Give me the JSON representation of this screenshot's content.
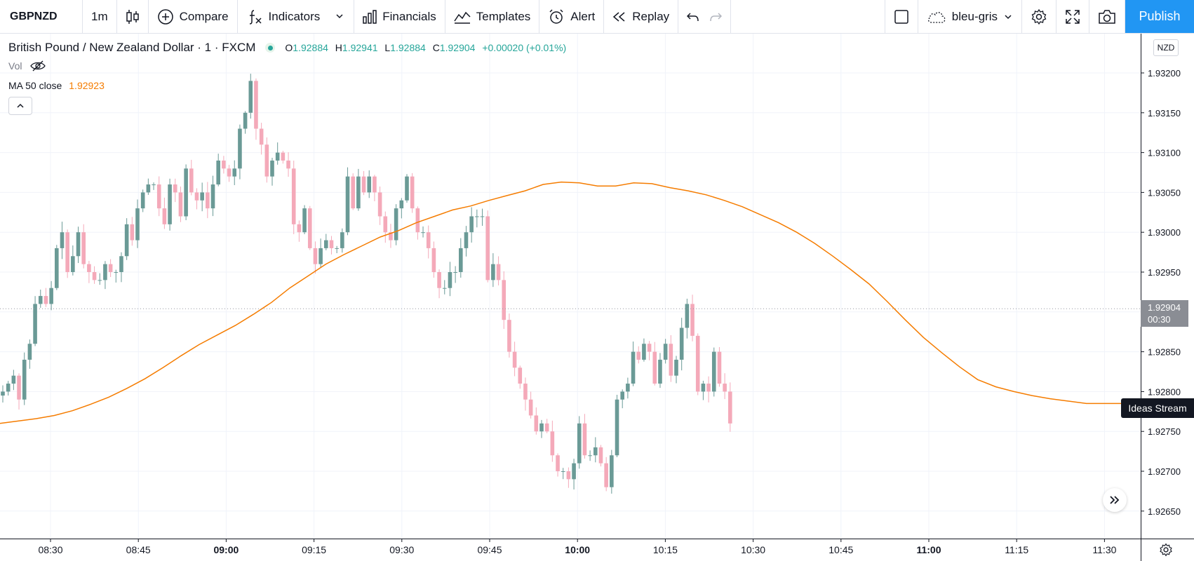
{
  "toolbar": {
    "symbol": "GBPNZD",
    "interval": "1m",
    "compare_label": "Compare",
    "indicators_label": "Indicators",
    "financials_label": "Financials",
    "templates_label": "Templates",
    "alert_label": "Alert",
    "replay_label": "Replay",
    "layout_name": "bleu-gris",
    "publish_label": "Publish"
  },
  "legend": {
    "title": "British Pound / New Zealand Dollar · 1 · FXCM",
    "o_label": "O",
    "o_value": "1.92884",
    "h_label": "H",
    "h_value": "1.92941",
    "l_label": "L",
    "l_value": "1.92884",
    "c_label": "C",
    "c_value": "1.92904",
    "change": "+0.00020 (+0.01%)",
    "vol_label": "Vol",
    "ma_label": "MA 50 close",
    "ma_value": "1.92923"
  },
  "price_axis": {
    "currency": "NZD",
    "last_price": "1.92904",
    "countdown": "00:30"
  },
  "ideas_label": "Ideas Stream",
  "colors": {
    "up": "#6a9a96",
    "down": "#f4a9b9",
    "ma": "#f57c00",
    "accent": "#2196f3"
  },
  "chart_data": {
    "type": "candlestick",
    "interval": "1m",
    "y_ticks": [
      1.932,
      1.9315,
      1.931,
      1.9305,
      1.93,
      1.9295,
      1.929,
      1.9285,
      1.928,
      1.9275,
      1.927,
      1.9265
    ],
    "y_tick_labels": [
      "1.93200",
      "1.93150",
      "1.93100",
      "1.93050",
      "1.93000",
      "1.92950",
      "1.92900",
      "1.92850",
      "1.92800",
      "1.92750",
      "1.92700",
      "1.92650"
    ],
    "ylim": [
      1.92612,
      1.9323
    ],
    "x_ticks": [
      {
        "label": "08:30",
        "bold": false
      },
      {
        "label": "08:45",
        "bold": false
      },
      {
        "label": "09:00",
        "bold": true
      },
      {
        "label": "09:15",
        "bold": false
      },
      {
        "label": "09:30",
        "bold": false
      },
      {
        "label": "09:45",
        "bold": false
      },
      {
        "label": "10:00",
        "bold": true
      },
      {
        "label": "10:15",
        "bold": false
      },
      {
        "label": "10:30",
        "bold": false
      },
      {
        "label": "10:45",
        "bold": false
      },
      {
        "label": "11:00",
        "bold": true
      },
      {
        "label": "11:15",
        "bold": false
      },
      {
        "label": "11:30",
        "bold": false
      }
    ],
    "last_price": 1.92904,
    "grid": true,
    "close_path": [
      1.928,
      1.9281,
      1.9282,
      1.9279,
      1.9284,
      1.9286,
      1.9291,
      1.9292,
      1.9291,
      1.9293,
      1.9298,
      1.93,
      1.9295,
      1.9297,
      1.93,
      1.9296,
      1.9295,
      1.9294,
      1.9294,
      1.9296,
      1.9295,
      1.9295,
      1.9297,
      1.9301,
      1.9299,
      1.9303,
      1.9305,
      1.9306,
      1.9306,
      1.9303,
      1.9301,
      1.9306,
      1.9305,
      1.9302,
      1.9308,
      1.9305,
      1.9304,
      1.9305,
      1.9303,
      1.9306,
      1.9309,
      1.9308,
      1.9307,
      1.9308,
      1.9313,
      1.9315,
      1.9319,
      1.9313,
      1.9311,
      1.9307,
      1.9309,
      1.931,
      1.9309,
      1.9308,
      1.9301,
      1.93,
      1.9303,
      1.9298,
      1.9296,
      1.9298,
      1.9299,
      1.9298,
      1.9298,
      1.93,
      1.9307,
      1.9303,
      1.9307,
      1.9305,
      1.9307,
      1.9305,
      1.9302,
      1.93,
      1.9299,
      1.9303,
      1.9304,
      1.9307,
      1.9303,
      1.93,
      1.93,
      1.9298,
      1.9295,
      1.9293,
      1.9293,
      1.9295,
      1.9295,
      1.9298,
      1.93,
      1.9302,
      1.9302,
      1.9302,
      1.9294,
      1.9296,
      1.9294,
      1.9289,
      1.9285,
      1.9283,
      1.9281,
      1.9279,
      1.9277,
      1.9275,
      1.9276,
      1.9275,
      1.9272,
      1.927,
      1.927,
      1.9269,
      1.9271,
      1.9276,
      1.9272,
      1.9272,
      1.9273,
      1.9271,
      1.9268,
      1.9272,
      1.9279,
      1.928,
      1.9281,
      1.9285,
      1.9284,
      1.9286,
      1.9285,
      1.9281,
      1.9284,
      1.9286,
      1.9282,
      1.9284,
      1.9288,
      1.9291,
      1.9287,
      1.928,
      1.9281,
      1.928,
      1.9285,
      1.9281,
      1.928,
      1.9276
    ],
    "ma_path": [
      1.9276,
      1.92763,
      1.92766,
      1.9277,
      1.92776,
      1.92784,
      1.92793,
      1.92804,
      1.92816,
      1.9283,
      1.92845,
      1.92859,
      1.92871,
      1.92883,
      1.92897,
      1.92912,
      1.9293,
      1.92945,
      1.9296,
      1.92972,
      1.92983,
      1.92994,
      1.93002,
      1.93012,
      1.9302,
      1.93028,
      1.93033,
      1.9304,
      1.93046,
      1.93052,
      1.9306,
      1.93063,
      1.93062,
      1.93058,
      1.93058,
      1.93062,
      1.93061,
      1.93056,
      1.93052,
      1.93047,
      1.9304,
      1.93032,
      1.93022,
      1.93012,
      1.93,
      1.92986,
      1.9297,
      1.92953,
      1.92935,
      1.92913,
      1.9289,
      1.92868,
      1.92849,
      1.92831,
      1.92815,
      1.92806,
      1.928,
      1.92795,
      1.92791,
      1.92788,
      1.92785,
      1.92785,
      1.92785,
      1.92789
    ]
  }
}
